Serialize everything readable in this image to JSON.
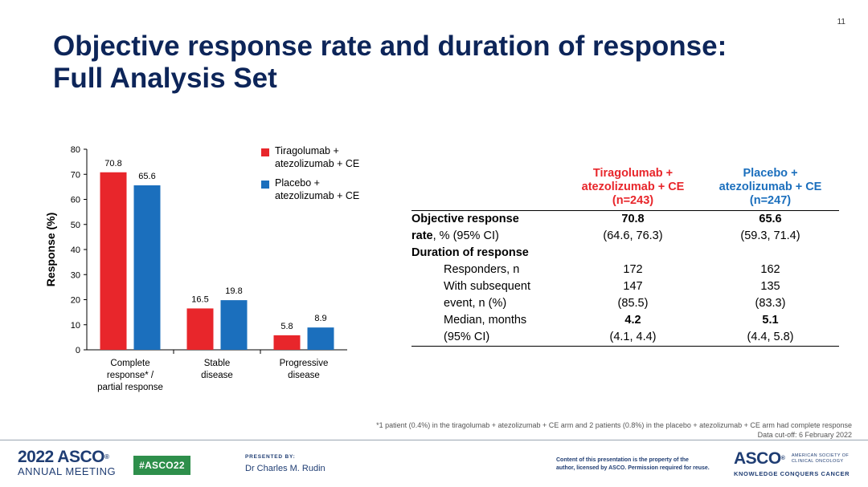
{
  "slide": {
    "page_number": "11",
    "title_line1": "Objective response rate and duration of response:",
    "title_line2": "Full Analysis Set"
  },
  "colors": {
    "tiragolumab": "#e8262b",
    "placebo": "#1b6fbd",
    "title": "#0d2559"
  },
  "legend": {
    "items": [
      {
        "line1": "Tiragolumab +",
        "line2": "atezolizumab + CE"
      },
      {
        "line1": "Placebo +",
        "line2": "atezolizumab + CE"
      }
    ]
  },
  "chart_data": {
    "type": "bar",
    "title": "",
    "xlabel": "",
    "ylabel": "Response (%)",
    "ylim": [
      0,
      80
    ],
    "yticks": [
      "0",
      "10",
      "20",
      "30",
      "40",
      "50",
      "60",
      "70",
      "80"
    ],
    "categories": [
      [
        "Complete",
        "response* /",
        "partial response"
      ],
      [
        "Stable",
        "disease"
      ],
      [
        "Progressive",
        "disease"
      ]
    ],
    "series": [
      {
        "name": "Tiragolumab + atezolizumab + CE",
        "values": [
          70.8,
          16.5,
          5.8
        ],
        "labels": [
          "70.8",
          "16.5",
          "5.8"
        ]
      },
      {
        "name": "Placebo + atezolizumab + CE",
        "values": [
          65.6,
          19.8,
          8.9
        ],
        "labels": [
          "65.6",
          "19.8",
          "8.9"
        ]
      }
    ],
    "grid": false,
    "legend_position": "top-right"
  },
  "table": {
    "col_tir": [
      "Tiragolumab +",
      "atezolizumab + CE",
      "(n=243)"
    ],
    "col_pbo": [
      "Placebo +",
      "atezolizumab + CE",
      "(n=247)"
    ],
    "orr_label_bold": "Objective response",
    "orr_label_bold2": "rate",
    "orr_label_rest": ", % (95% CI)",
    "orr_tir": "70.8",
    "orr_tir_ci": "(64.6, 76.3)",
    "orr_pbo": "65.6",
    "orr_pbo_ci": "(59.3, 71.4)",
    "dor_label": "Duration of response",
    "responders_label": "Responders, n",
    "responders_tir": "172",
    "responders_pbo": "162",
    "event_label1": "With subsequent",
    "event_label2": "event, n (%)",
    "event_tir": "147",
    "event_tir_pct": "(85.5)",
    "event_pbo": "135",
    "event_pbo_pct": "(83.3)",
    "median_label1": "Median, months",
    "median_label2": "(95% CI)",
    "median_tir": "4.2",
    "median_tir_ci": "(4.1, 4.4)",
    "median_pbo": "5.1",
    "median_pbo_ci": "(4.4, 5.8)"
  },
  "footnote": {
    "line1": "*1 patient (0.4%) in the tiragolumab + atezolizumab  + CE arm and 2 patients (0.8%) in the placebo + atezolizumab  + CE arm had complete response",
    "line2": "Data cut-off: 6 February 2022"
  },
  "footer": {
    "year_asco": "2022 ASCO",
    "annual_meeting": "ANNUAL MEETING",
    "hashtag": "#ASCO22",
    "presented_by": "PRESENTED BY:",
    "presenter": "Dr Charles M. Rudin",
    "copyright_line1": "Content of this presentation is the property of the",
    "copyright_line2": "author, licensed by ASCO. Permission required for reuse.",
    "asco_logo": "ASCO",
    "society_line1": "AMERICAN SOCIETY OF",
    "society_line2": "CLINICAL ONCOLOGY",
    "tagline": "KNOWLEDGE CONQUERS CANCER"
  }
}
